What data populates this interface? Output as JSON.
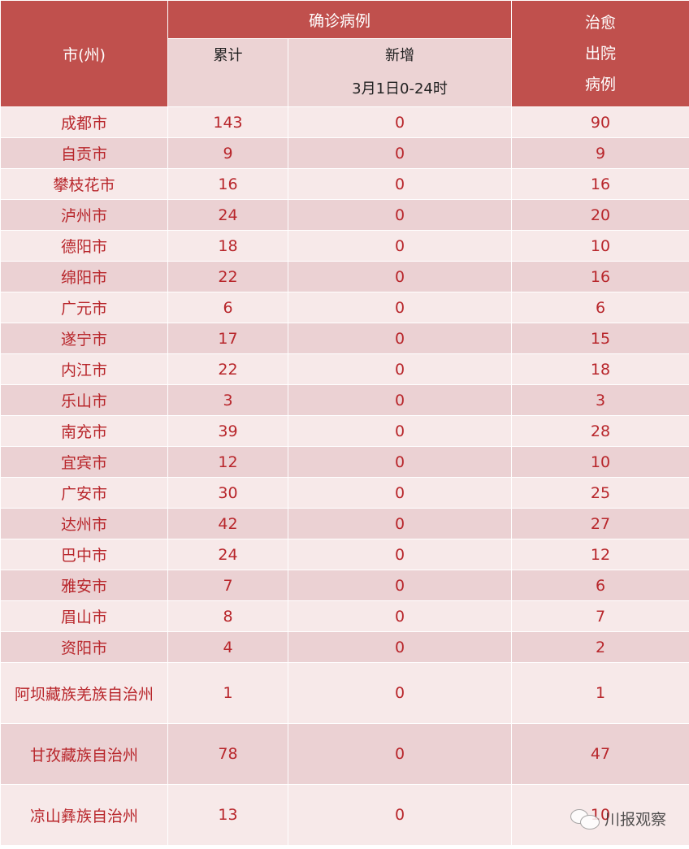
{
  "header": {
    "city": "市(州)",
    "confirmed": "确诊病例",
    "cumulative": "累计",
    "new": "新增",
    "new_period": "3月1日0-24时",
    "recovered": [
      "治愈",
      "出院",
      "病例"
    ]
  },
  "rows": [
    {
      "city": "成都市",
      "cumulative": "143",
      "new": "0",
      "recovered": "90"
    },
    {
      "city": "自贡市",
      "cumulative": "9",
      "new": "0",
      "recovered": "9"
    },
    {
      "city": "攀枝花市",
      "cumulative": "16",
      "new": "0",
      "recovered": "16"
    },
    {
      "city": "泸州市",
      "cumulative": "24",
      "new": "0",
      "recovered": "20"
    },
    {
      "city": "德阳市",
      "cumulative": "18",
      "new": "0",
      "recovered": "10"
    },
    {
      "city": "绵阳市",
      "cumulative": "22",
      "new": "0",
      "recovered": "16"
    },
    {
      "city": "广元市",
      "cumulative": "6",
      "new": "0",
      "recovered": "6"
    },
    {
      "city": "遂宁市",
      "cumulative": "17",
      "new": "0",
      "recovered": "15"
    },
    {
      "city": "内江市",
      "cumulative": "22",
      "new": "0",
      "recovered": "18"
    },
    {
      "city": "乐山市",
      "cumulative": "3",
      "new": "0",
      "recovered": "3"
    },
    {
      "city": "南充市",
      "cumulative": "39",
      "new": "0",
      "recovered": "28"
    },
    {
      "city": "宜宾市",
      "cumulative": "12",
      "new": "0",
      "recovered": "10"
    },
    {
      "city": "广安市",
      "cumulative": "30",
      "new": "0",
      "recovered": "25"
    },
    {
      "city": "达州市",
      "cumulative": "42",
      "new": "0",
      "recovered": "27"
    },
    {
      "city": "巴中市",
      "cumulative": "24",
      "new": "0",
      "recovered": "12"
    },
    {
      "city": "雅安市",
      "cumulative": "7",
      "new": "0",
      "recovered": "6"
    },
    {
      "city": "眉山市",
      "cumulative": "8",
      "new": "0",
      "recovered": "7"
    },
    {
      "city": "资阳市",
      "cumulative": "4",
      "new": "0",
      "recovered": "2"
    },
    {
      "city": "阿坝藏族羌族自治州",
      "cumulative": "1",
      "new": "0",
      "recovered": "1"
    },
    {
      "city": "甘孜藏族自治州",
      "cumulative": "78",
      "new": "0",
      "recovered": "47"
    },
    {
      "city": "凉山彝族自治州",
      "cumulative": "13",
      "new": "0",
      "recovered": "10"
    }
  ],
  "watermark": {
    "text": "川报观察",
    "icon": "wechat-icon"
  },
  "colors": {
    "header": "#c0504d",
    "text": "#b8262b",
    "row_light": "#f7e9e9",
    "row_dark": "#ebd1d3"
  }
}
